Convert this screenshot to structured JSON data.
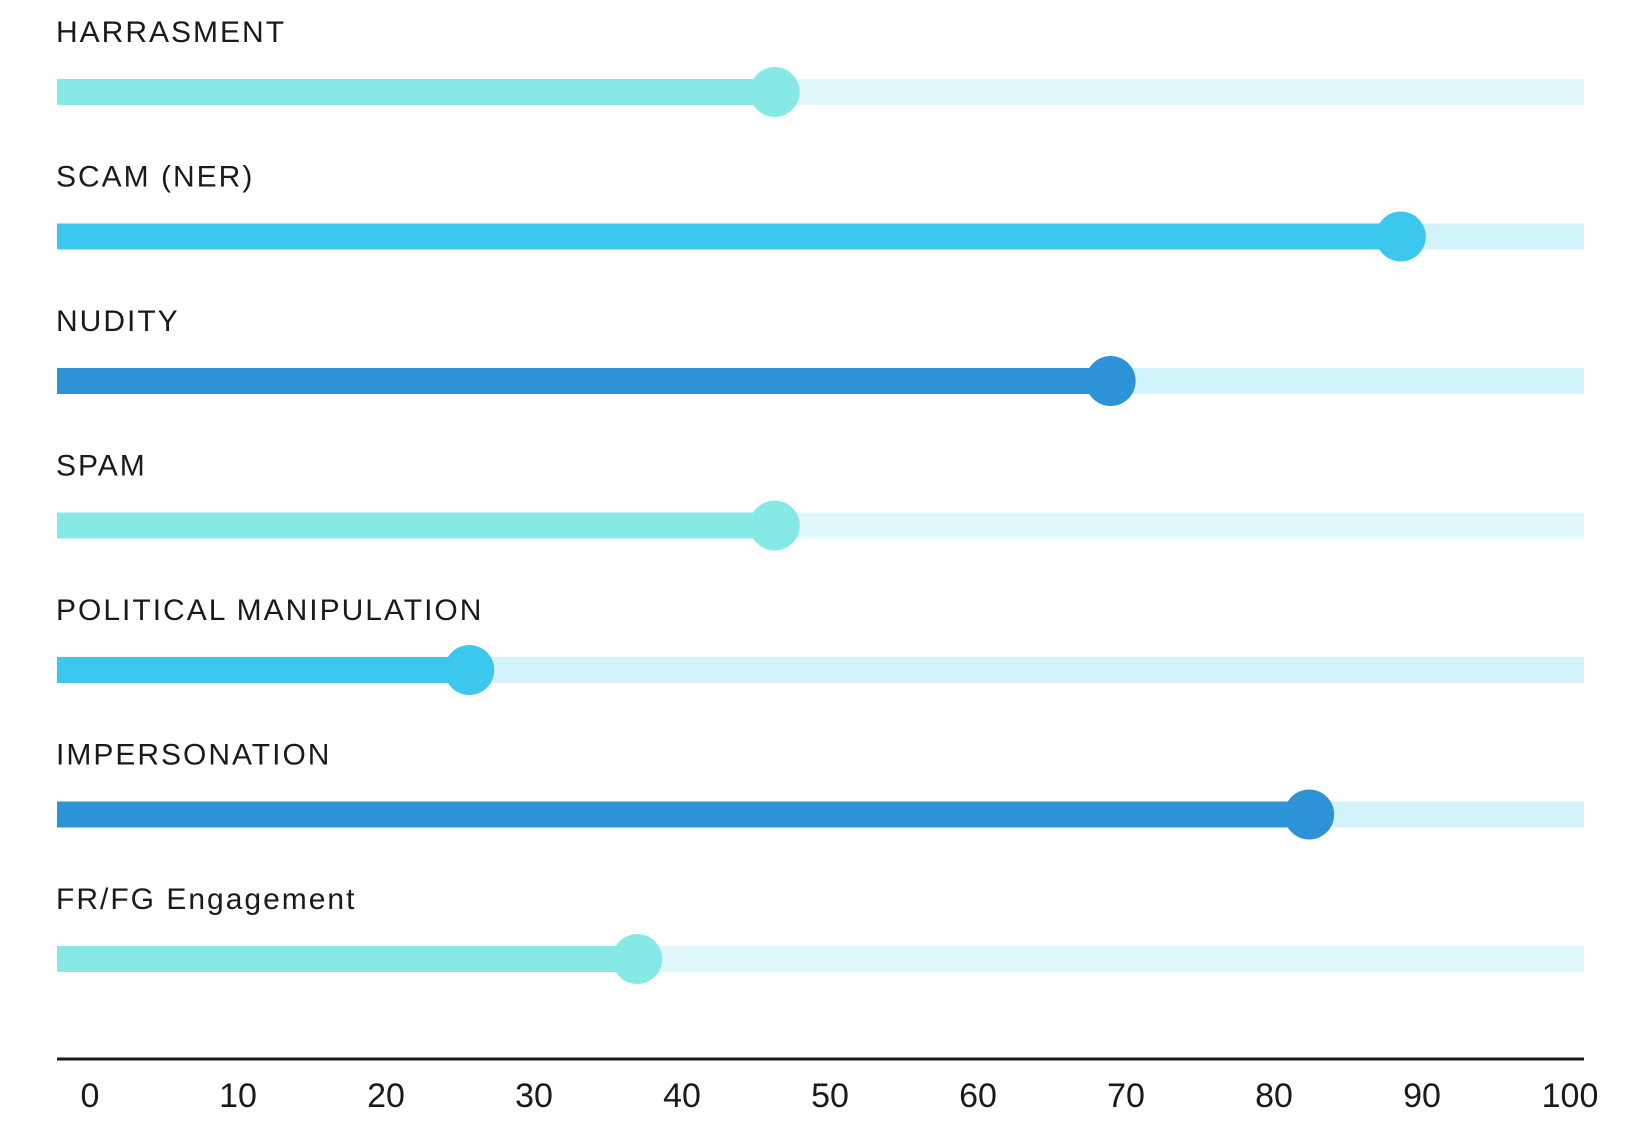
{
  "chart_data": {
    "type": "bar",
    "title": "",
    "xlabel": "",
    "ylabel": "",
    "xlim": [
      0,
      100
    ],
    "grid": false,
    "legend": "none",
    "xticks": [
      "0",
      "10",
      "20",
      "30",
      "40",
      "50",
      "60",
      "70",
      "80",
      "90",
      "100"
    ],
    "rows": [
      {
        "label": "HARRASMENT",
        "value": 47,
        "color": "#86E9E6",
        "track_color": "#E0F8F9"
      },
      {
        "label": "SCAM (NER)",
        "value": 88,
        "color": "#3CC8EE",
        "track_color": "#D3F3FB"
      },
      {
        "label": "NUDITY",
        "value": 69,
        "color": "#2E92D6",
        "track_color": "#D3F3FB"
      },
      {
        "label": "SPAM",
        "value": 47,
        "color": "#86E9E6",
        "track_color": "#E0F8F9"
      },
      {
        "label": "POLITICAL MANIPULATION",
        "value": 27,
        "color": "#3CC8EE",
        "track_color": "#D3F3FB"
      },
      {
        "label": "IMPERSONATION",
        "value": 82,
        "color": "#2E92D6",
        "track_color": "#D3F3FB"
      },
      {
        "label": "FR/FG Engagement",
        "value": 38,
        "color": "#86E9E6",
        "track_color": "#E0F8F9"
      }
    ],
    "axis_color": "#1a1a1a"
  }
}
